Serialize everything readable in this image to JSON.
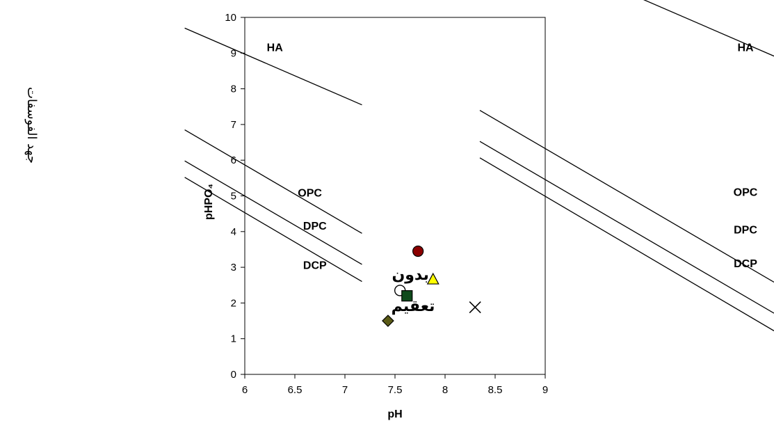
{
  "side_label": "جهد الفوسفات",
  "chart_data": {
    "type": "scatter",
    "title": "",
    "xlabel": "pH",
    "ylabel": "pHPO₄",
    "xlim": [
      6,
      9
    ],
    "ylim": [
      0,
      10
    ],
    "x_ticks": [
      "6",
      "6.5",
      "7",
      "7.5",
      "8",
      "8.5",
      "9"
    ],
    "y_ticks": [
      "0",
      "1",
      "2",
      "3",
      "4",
      "5",
      "6",
      "7",
      "8",
      "9",
      "10"
    ],
    "grid": false,
    "legend": "none",
    "reference_lines": [
      {
        "label": "HA",
        "x": [
          5.4,
          7.17
        ],
        "y": [
          9.7,
          7.55
        ]
      },
      {
        "label": "OPC",
        "x": [
          5.4,
          7.17
        ],
        "y": [
          6.85,
          3.95
        ]
      },
      {
        "label": "DPC",
        "x": [
          5.4,
          7.17
        ],
        "y": [
          5.98,
          3.08
        ]
      },
      {
        "label": "DCP",
        "x": [
          5.4,
          7.17
        ],
        "y": [
          5.52,
          2.6
        ]
      }
    ],
    "series": [
      {
        "marker": "circle",
        "color": "#8b0000",
        "points": [
          [
            7.73,
            3.45
          ]
        ]
      },
      {
        "marker": "triangle",
        "color": "#ffff00",
        "points": [
          [
            7.88,
            2.65
          ]
        ]
      },
      {
        "marker": "open-circle",
        "color": "none",
        "points": [
          [
            7.55,
            2.35
          ]
        ]
      },
      {
        "marker": "square",
        "color": "#0f4a1c",
        "points": [
          [
            7.62,
            2.2
          ]
        ]
      },
      {
        "marker": "diamond",
        "color": "#5a5a16",
        "points": [
          [
            7.43,
            1.5
          ]
        ]
      },
      {
        "marker": "x",
        "color": "#000000",
        "points": [
          [
            8.3,
            1.88
          ]
        ]
      }
    ],
    "annotation": "بدون تعقيم",
    "right_panel": {
      "reference_lines": [
        {
          "label": "HA",
          "y_start": 9.7,
          "y_end": 7.55
        },
        {
          "label": "OPC",
          "y_start": 6.85,
          "y_end": 3.95
        },
        {
          "label": "DPC",
          "y_start": 5.98,
          "y_end": 3.08
        },
        {
          "label": "DCP",
          "y_start": 5.52,
          "y_end": 2.6
        }
      ]
    }
  }
}
